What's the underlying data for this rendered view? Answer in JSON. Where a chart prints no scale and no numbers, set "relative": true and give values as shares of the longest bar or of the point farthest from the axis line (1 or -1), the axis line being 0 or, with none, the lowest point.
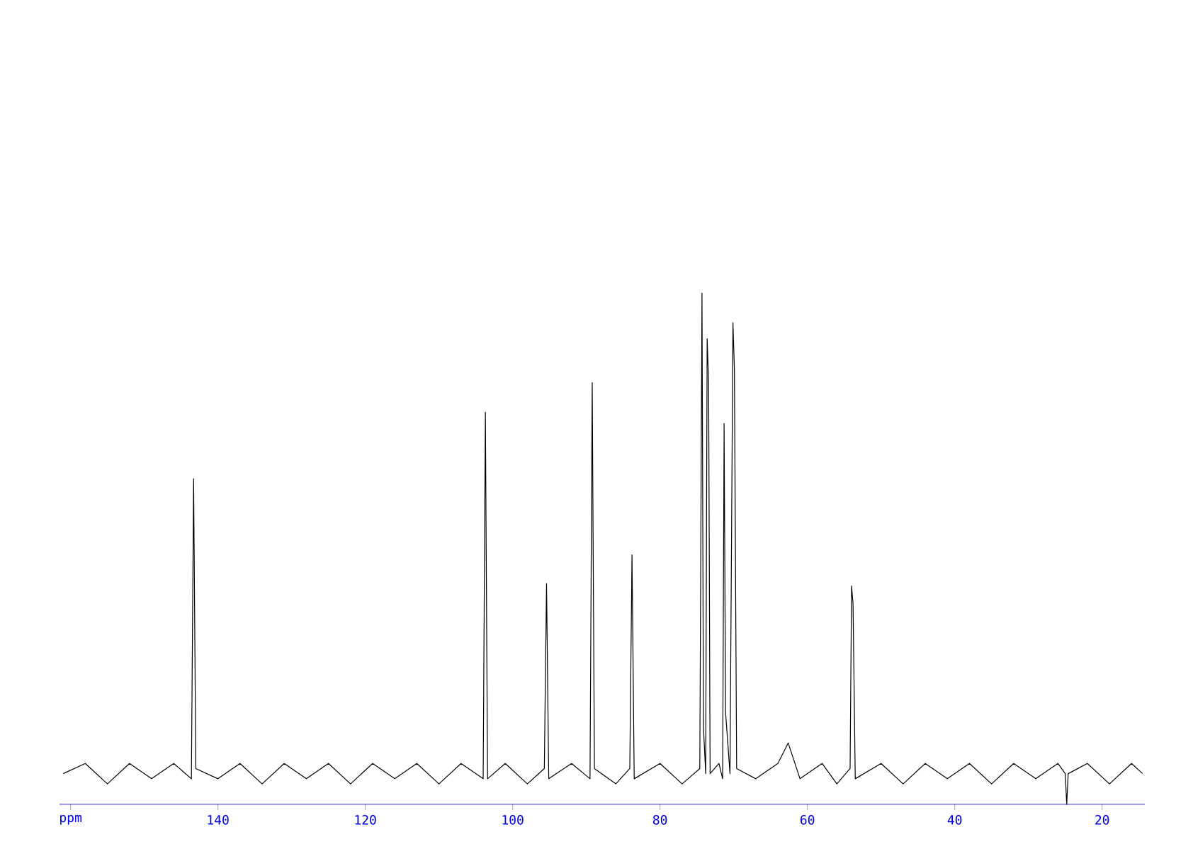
{
  "chart_data": {
    "type": "line",
    "relative": true,
    "xlim": [
      161.5,
      14.2
    ],
    "xticks": [
      {
        "value": 160,
        "label": "ppm"
      },
      140,
      120,
      100,
      80,
      60,
      40,
      20
    ],
    "series": [
      {
        "color": "#000000",
        "x": [
          161,
          158,
          155,
          152,
          149,
          146,
          143.6,
          143.3,
          143.0,
          140,
          137,
          134,
          131,
          128,
          125,
          122,
          119,
          116,
          113,
          110,
          107,
          104,
          103.7,
          103.4,
          101,
          98,
          95.7,
          95.4,
          95.1,
          92,
          89.5,
          89.2,
          88.9,
          86,
          84.1,
          83.8,
          83.5,
          80,
          77,
          74.6,
          74.3,
          74.1,
          73.8,
          73.6,
          73.4,
          73.2,
          72,
          71.5,
          71.3,
          71.1,
          70.5,
          70.1,
          69.9,
          69.6,
          67,
          64,
          62.6,
          61,
          58,
          56,
          54.2,
          54.0,
          53.8,
          53.5,
          50,
          47,
          44,
          41,
          38,
          35,
          32,
          29,
          26,
          25.0,
          24.8,
          24.6,
          22,
          19,
          16,
          14.5
        ],
        "values": [
          0.06,
          0.08,
          0.04,
          0.08,
          0.05,
          0.08,
          0.05,
          0.637,
          0.07,
          0.05,
          0.08,
          0.04,
          0.08,
          0.05,
          0.08,
          0.04,
          0.08,
          0.05,
          0.08,
          0.04,
          0.08,
          0.05,
          0.767,
          0.05,
          0.08,
          0.04,
          0.07,
          0.432,
          0.05,
          0.08,
          0.05,
          0.825,
          0.07,
          0.04,
          0.07,
          0.488,
          0.05,
          0.08,
          0.04,
          0.07,
          1,
          0.15,
          0.06,
          0.911,
          0.823,
          0.06,
          0.08,
          0.05,
          0.745,
          0.18,
          0.06,
          0.942,
          0.85,
          0.07,
          0.05,
          0.08,
          0.12,
          0.05,
          0.08,
          0.04,
          0.07,
          0.427,
          0.393,
          0.05,
          0.08,
          0.04,
          0.08,
          0.05,
          0.08,
          0.04,
          0.08,
          0.05,
          0.08,
          0.06,
          0,
          0.06,
          0.08,
          0.04,
          0.08,
          0.06
        ]
      }
    ]
  }
}
